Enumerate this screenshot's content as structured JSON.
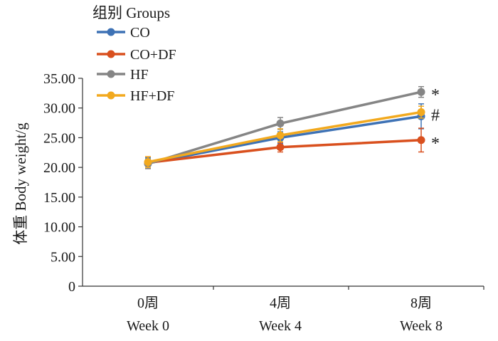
{
  "chart_data": {
    "type": "line",
    "ylabel": "体重 Body weight/g",
    "ylim": [
      0,
      35
    ],
    "yticks": [
      "0",
      "5.00",
      "10.00",
      "15.00",
      "20.00",
      "25.00",
      "30.00",
      "35.00"
    ],
    "categories": [
      {
        "line1": "0周",
        "line2": "Week 0"
      },
      {
        "line1": "4周",
        "line2": "Week 4"
      },
      {
        "line1": "8周",
        "line2": "Week 8"
      }
    ],
    "legend": {
      "title": "组别 Groups",
      "placement": "top-left"
    },
    "series": [
      {
        "name": "CO",
        "color": "#3E72B5",
        "values": [
          20.7,
          25.0,
          28.6
        ],
        "errors": [
          0.9,
          1.0,
          2.1
        ]
      },
      {
        "name": "CO+DF",
        "color": "#D9501E",
        "values": [
          20.8,
          23.4,
          24.6
        ],
        "errors": [
          1.0,
          0.8,
          2.0
        ]
      },
      {
        "name": "HF",
        "color": "#858585",
        "values": [
          20.6,
          27.4,
          32.7
        ],
        "errors": [
          0.8,
          1.0,
          0.9
        ]
      },
      {
        "name": "HF+DF",
        "color": "#F2A91E",
        "values": [
          20.9,
          25.4,
          29.3
        ],
        "errors": [
          0.9,
          1.1,
          1.0
        ]
      }
    ],
    "annotations": [
      {
        "text": "*",
        "series": "HF"
      },
      {
        "text": "#",
        "series": "HF+DF"
      },
      {
        "text": "*",
        "series": "CO+DF"
      }
    ],
    "grid": false
  }
}
